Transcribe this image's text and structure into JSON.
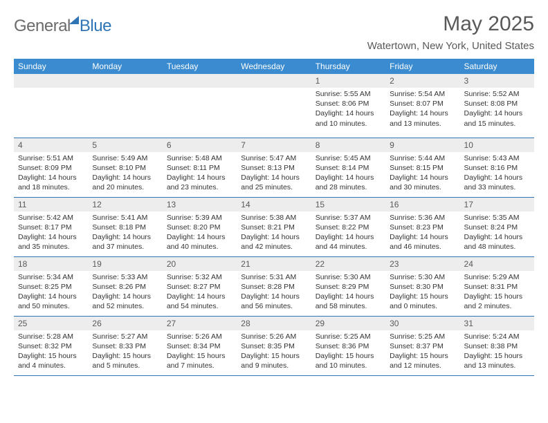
{
  "logo": {
    "part1": "General",
    "part2": "Blue"
  },
  "title": "May 2025",
  "location": "Watertown, New York, United States",
  "header_bg": "#3b8bd0",
  "border_color": "#2f75b5",
  "daynum_bg": "#ededed",
  "weekdays": [
    "Sunday",
    "Monday",
    "Tuesday",
    "Wednesday",
    "Thursday",
    "Friday",
    "Saturday"
  ],
  "weeks": [
    [
      null,
      null,
      null,
      null,
      {
        "n": "1",
        "sr": "5:55 AM",
        "ss": "8:06 PM",
        "dl": "14 hours and 10 minutes."
      },
      {
        "n": "2",
        "sr": "5:54 AM",
        "ss": "8:07 PM",
        "dl": "14 hours and 13 minutes."
      },
      {
        "n": "3",
        "sr": "5:52 AM",
        "ss": "8:08 PM",
        "dl": "14 hours and 15 minutes."
      }
    ],
    [
      {
        "n": "4",
        "sr": "5:51 AM",
        "ss": "8:09 PM",
        "dl": "14 hours and 18 minutes."
      },
      {
        "n": "5",
        "sr": "5:49 AM",
        "ss": "8:10 PM",
        "dl": "14 hours and 20 minutes."
      },
      {
        "n": "6",
        "sr": "5:48 AM",
        "ss": "8:11 PM",
        "dl": "14 hours and 23 minutes."
      },
      {
        "n": "7",
        "sr": "5:47 AM",
        "ss": "8:13 PM",
        "dl": "14 hours and 25 minutes."
      },
      {
        "n": "8",
        "sr": "5:45 AM",
        "ss": "8:14 PM",
        "dl": "14 hours and 28 minutes."
      },
      {
        "n": "9",
        "sr": "5:44 AM",
        "ss": "8:15 PM",
        "dl": "14 hours and 30 minutes."
      },
      {
        "n": "10",
        "sr": "5:43 AM",
        "ss": "8:16 PM",
        "dl": "14 hours and 33 minutes."
      }
    ],
    [
      {
        "n": "11",
        "sr": "5:42 AM",
        "ss": "8:17 PM",
        "dl": "14 hours and 35 minutes."
      },
      {
        "n": "12",
        "sr": "5:41 AM",
        "ss": "8:18 PM",
        "dl": "14 hours and 37 minutes."
      },
      {
        "n": "13",
        "sr": "5:39 AM",
        "ss": "8:20 PM",
        "dl": "14 hours and 40 minutes."
      },
      {
        "n": "14",
        "sr": "5:38 AM",
        "ss": "8:21 PM",
        "dl": "14 hours and 42 minutes."
      },
      {
        "n": "15",
        "sr": "5:37 AM",
        "ss": "8:22 PM",
        "dl": "14 hours and 44 minutes."
      },
      {
        "n": "16",
        "sr": "5:36 AM",
        "ss": "8:23 PM",
        "dl": "14 hours and 46 minutes."
      },
      {
        "n": "17",
        "sr": "5:35 AM",
        "ss": "8:24 PM",
        "dl": "14 hours and 48 minutes."
      }
    ],
    [
      {
        "n": "18",
        "sr": "5:34 AM",
        "ss": "8:25 PM",
        "dl": "14 hours and 50 minutes."
      },
      {
        "n": "19",
        "sr": "5:33 AM",
        "ss": "8:26 PM",
        "dl": "14 hours and 52 minutes."
      },
      {
        "n": "20",
        "sr": "5:32 AM",
        "ss": "8:27 PM",
        "dl": "14 hours and 54 minutes."
      },
      {
        "n": "21",
        "sr": "5:31 AM",
        "ss": "8:28 PM",
        "dl": "14 hours and 56 minutes."
      },
      {
        "n": "22",
        "sr": "5:30 AM",
        "ss": "8:29 PM",
        "dl": "14 hours and 58 minutes."
      },
      {
        "n": "23",
        "sr": "5:30 AM",
        "ss": "8:30 PM",
        "dl": "15 hours and 0 minutes."
      },
      {
        "n": "24",
        "sr": "5:29 AM",
        "ss": "8:31 PM",
        "dl": "15 hours and 2 minutes."
      }
    ],
    [
      {
        "n": "25",
        "sr": "5:28 AM",
        "ss": "8:32 PM",
        "dl": "15 hours and 4 minutes."
      },
      {
        "n": "26",
        "sr": "5:27 AM",
        "ss": "8:33 PM",
        "dl": "15 hours and 5 minutes."
      },
      {
        "n": "27",
        "sr": "5:26 AM",
        "ss": "8:34 PM",
        "dl": "15 hours and 7 minutes."
      },
      {
        "n": "28",
        "sr": "5:26 AM",
        "ss": "8:35 PM",
        "dl": "15 hours and 9 minutes."
      },
      {
        "n": "29",
        "sr": "5:25 AM",
        "ss": "8:36 PM",
        "dl": "15 hours and 10 minutes."
      },
      {
        "n": "30",
        "sr": "5:25 AM",
        "ss": "8:37 PM",
        "dl": "15 hours and 12 minutes."
      },
      {
        "n": "31",
        "sr": "5:24 AM",
        "ss": "8:38 PM",
        "dl": "15 hours and 13 minutes."
      }
    ]
  ],
  "labels": {
    "sunrise": "Sunrise:",
    "sunset": "Sunset:",
    "daylight": "Daylight:"
  }
}
